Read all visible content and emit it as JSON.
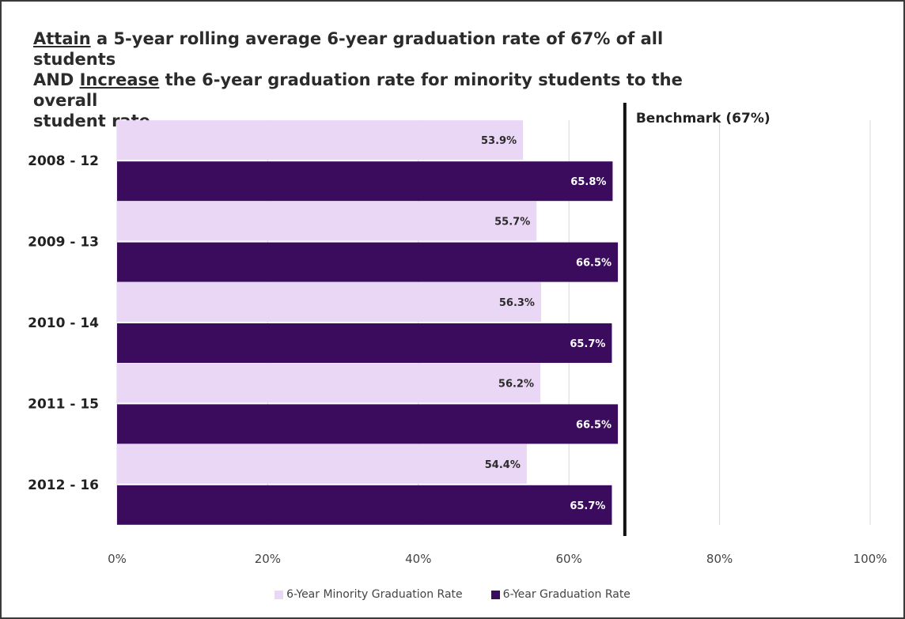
{
  "title": {
    "line1_underlined": "Attain",
    "line1_rest": " a 5-year rolling average 6-year graduation rate of 67% of all students",
    "line2_prefix": "AND ",
    "line2_underlined": "Increase",
    "line2_rest": " the 6-year graduation rate for minority students to the overall",
    "line3": "student rate"
  },
  "colors": {
    "minority": "#ead6f5",
    "overall": "#3b0c5e",
    "grid": "#d9d9d9",
    "benchmark": "#111111"
  },
  "chart_data": {
    "type": "bar",
    "orientation": "horizontal",
    "categories": [
      "2008 - 12",
      "2009 - 13",
      "2010 - 14",
      "2011 - 15",
      "2012 - 16"
    ],
    "series": [
      {
        "name": "6-Year Minority Graduation Rate",
        "values": [
          53.9,
          55.7,
          56.3,
          56.2,
          54.4
        ],
        "labels": [
          "53.9%",
          "55.7%",
          "56.3%",
          "56.2%",
          "54.4%"
        ]
      },
      {
        "name": "6-Year Graduation Rate",
        "values": [
          65.8,
          66.5,
          65.7,
          66.5,
          65.7
        ],
        "labels": [
          "65.8%",
          "66.5%",
          "65.7%",
          "66.5%",
          "65.7%"
        ]
      }
    ],
    "xlim": [
      0,
      100
    ],
    "xticks": [
      0,
      20,
      40,
      60,
      80,
      100
    ],
    "xtick_labels": [
      "0%",
      "20%",
      "40%",
      "60%",
      "80%",
      "100%"
    ],
    "grid": true,
    "legend_position": "bottom",
    "benchmark": {
      "value": 67,
      "label": "Benchmark (67%)"
    }
  }
}
